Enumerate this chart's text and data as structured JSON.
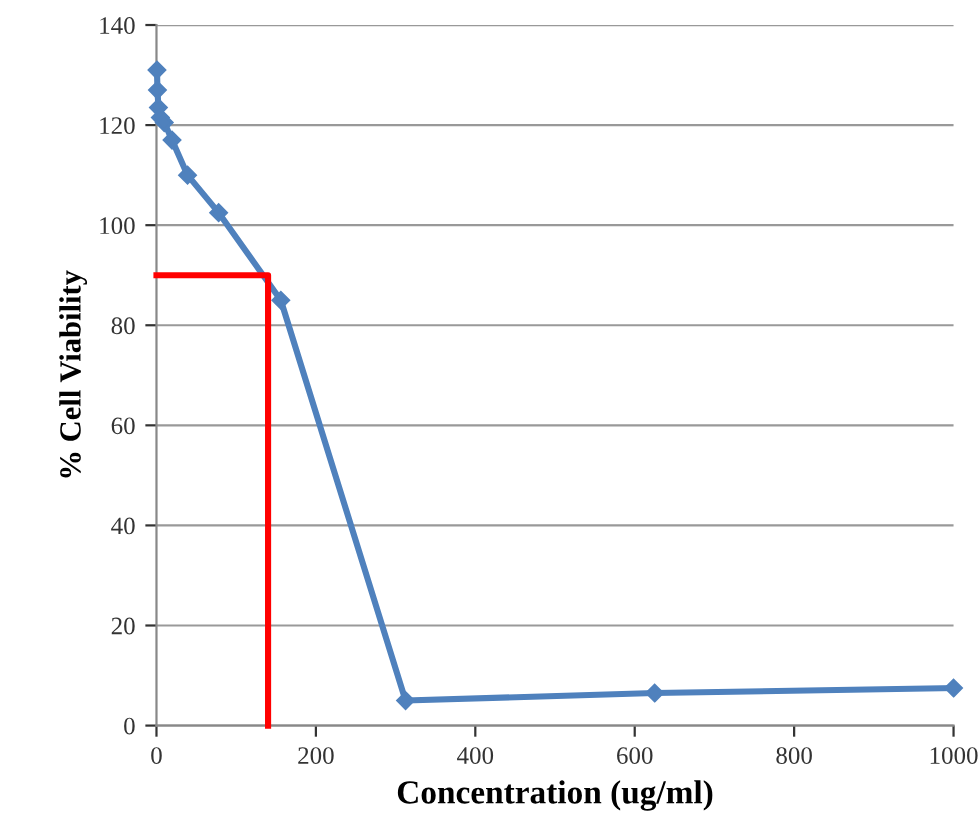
{
  "chart_data": {
    "type": "line",
    "xlabel": "Concentration (ug/ml)",
    "ylabel": "% Cell Viability",
    "xlim": [
      0,
      1000
    ],
    "xticks": [
      0,
      200,
      400,
      600,
      800,
      1000
    ],
    "ylim": [
      0,
      140
    ],
    "yticks": [
      0,
      20,
      40,
      60,
      80,
      100,
      120,
      140
    ],
    "grid": "y",
    "legend": false,
    "series": [
      {
        "color": "#4f81bd",
        "marker": "diamond",
        "x": [
          0.61,
          1.22,
          2.44,
          4.88,
          9.77,
          19.5,
          39,
          78,
          156,
          312.5,
          625,
          1000
        ],
        "values": [
          131,
          127,
          123.5,
          121.5,
          120.5,
          117,
          110,
          102.5,
          85,
          5,
          6.5,
          7.5
        ]
      },
      {
        "color": "#ff0000",
        "marker": "none",
        "x": [
          0,
          140,
          140
        ],
        "values": [
          90,
          90,
          0
        ]
      }
    ]
  }
}
